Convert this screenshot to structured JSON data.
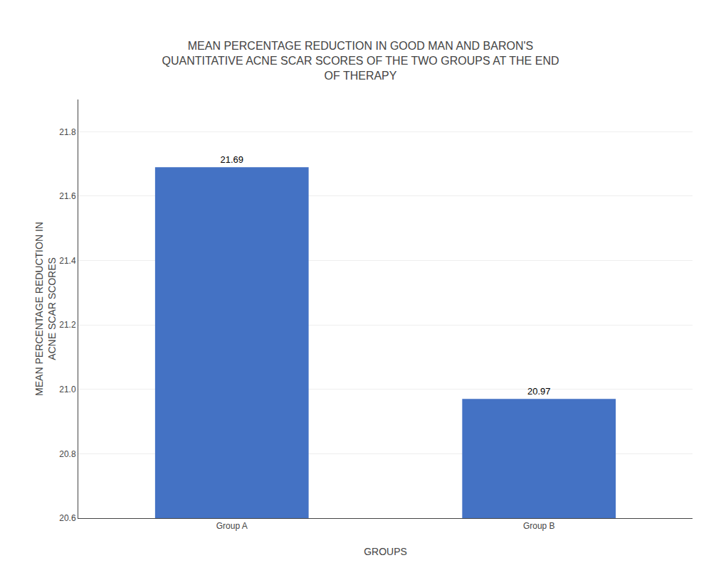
{
  "chart_data": {
    "type": "bar",
    "title": "MEAN PERCENTAGE REDUCTION IN GOOD MAN AND BARON'S\nQUANTITATIVE ACNE SCAR SCORES OF THE TWO GROUPS AT THE END\nOF THERAPY",
    "categories": [
      "Group A",
      "Group B"
    ],
    "values": [
      21.69,
      20.97
    ],
    "color": "#4472C4",
    "xlabel": "GROUPS",
    "ylabel": "MEAN PERCENTAGE REDUCTION IN\nACNE SCAR SCORES",
    "ylim": [
      20.6,
      21.9
    ],
    "yticks": [
      20.6,
      20.8,
      {
        "value": 21.0,
        "label": "21.0"
      },
      21.2,
      21.4,
      21.6,
      21.8
    ],
    "grid": true,
    "data_labels": true
  }
}
